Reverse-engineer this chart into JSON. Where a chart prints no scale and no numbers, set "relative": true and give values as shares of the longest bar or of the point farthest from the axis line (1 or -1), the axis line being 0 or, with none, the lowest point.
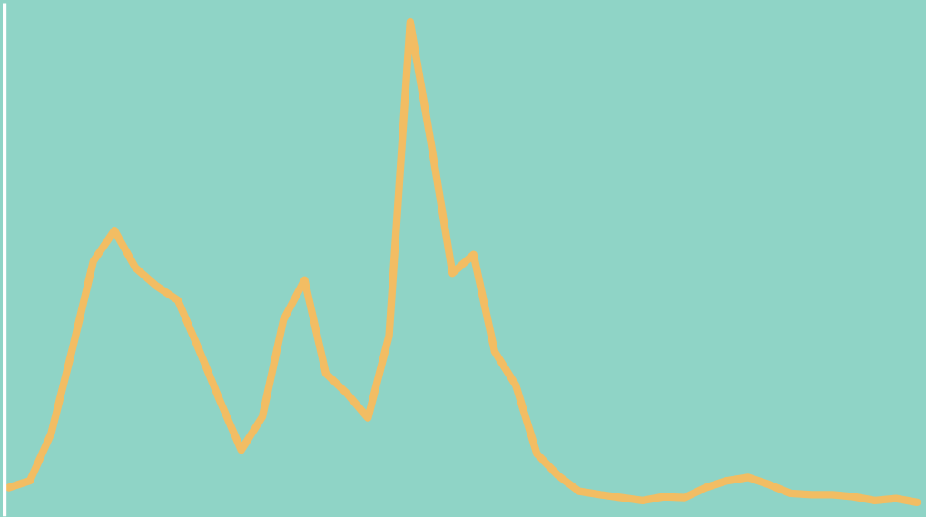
{
  "chart_data": {
    "type": "line",
    "relative": true,
    "grid": false,
    "legend": false,
    "marker": "none",
    "line_style": "solid",
    "categories": [
      null,
      null,
      null,
      null,
      null,
      null,
      null,
      null,
      null,
      null,
      null,
      null,
      null,
      null,
      null,
      null,
      null,
      null,
      null,
      null,
      null,
      null,
      null,
      null,
      null,
      null,
      null,
      null,
      null,
      null,
      null,
      null,
      null,
      null,
      null,
      null,
      null,
      null,
      null,
      null,
      null,
      null,
      null,
      null
    ],
    "series": [
      {
        "color": "#f2bd63",
        "values": [
          0.031,
          0.045,
          0.143,
          0.318,
          0.502,
          0.566,
          0.488,
          0.45,
          0.421,
          0.318,
          0.211,
          0.109,
          0.178,
          0.38,
          0.463,
          0.269,
          0.227,
          0.176,
          0.347,
          1,
          0.744,
          0.477,
          0.516,
          0.314,
          0.244,
          0.101,
          0.056,
          0.023,
          0.016,
          0.01,
          0.004,
          0.012,
          0.01,
          0.031,
          0.045,
          0.052,
          0.037,
          0.019,
          0.016,
          0.016,
          0.012,
          0.004,
          0.008,
          0
        ]
      }
    ]
  }
}
